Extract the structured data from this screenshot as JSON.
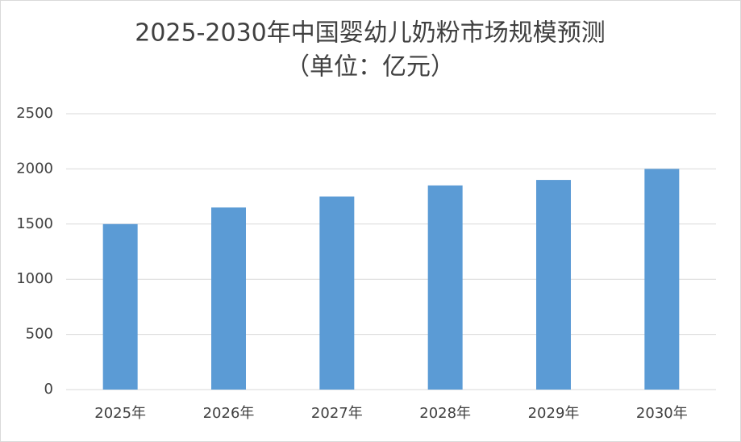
{
  "chart_data": {
    "type": "bar",
    "title": "2025-2030年中国婴幼儿奶粉市场规模预测",
    "subtitle": "（单位：亿元）",
    "categories": [
      "2025年",
      "2026年",
      "2027年",
      "2028年",
      "2029年",
      "2030年"
    ],
    "values": [
      1500,
      1650,
      1750,
      1850,
      1900,
      2000
    ],
    "color": "#5b9bd5",
    "ylim": [
      0,
      2500
    ],
    "yticks": [
      0,
      500,
      1000,
      1500,
      2000,
      2500
    ],
    "grid": true
  }
}
